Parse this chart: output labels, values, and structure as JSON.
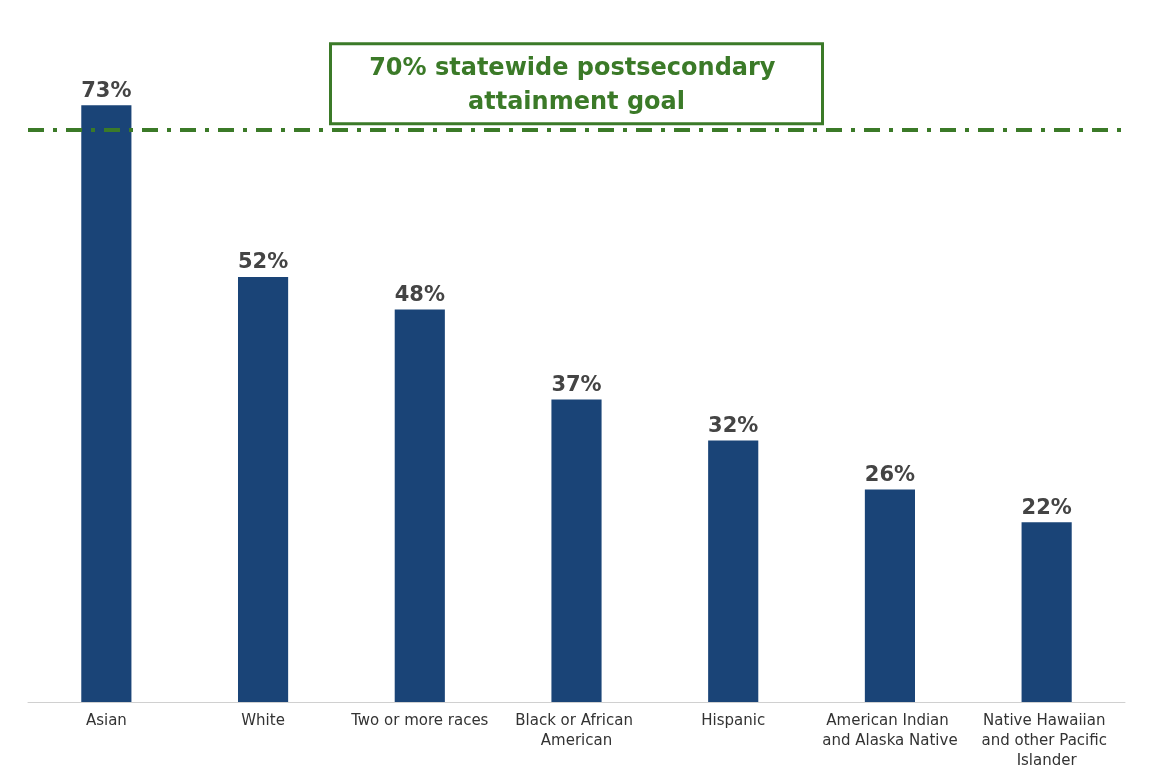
{
  "chart_data": {
    "type": "bar",
    "categories": [
      "Asian",
      "White",
      "Two or more races",
      "Black or African American",
      "Hispanic",
      "American Indian and Alaska Native",
      "Native Hawaiian and other Pacific Islander"
    ],
    "values": [
      73,
      52,
      48,
      37,
      32,
      26,
      22
    ],
    "value_labels": [
      "73%",
      "52%",
      "48%",
      "37%",
      "32%",
      "26%",
      "22%"
    ],
    "color": "#1a4477",
    "tick_labels": "x",
    "ref_lines": [
      {
        "axis": "y",
        "value": 70,
        "label": "70% statewide postsecondary attainment goal",
        "color": "#3b7a28",
        "line_style": "dashdot"
      }
    ]
  }
}
